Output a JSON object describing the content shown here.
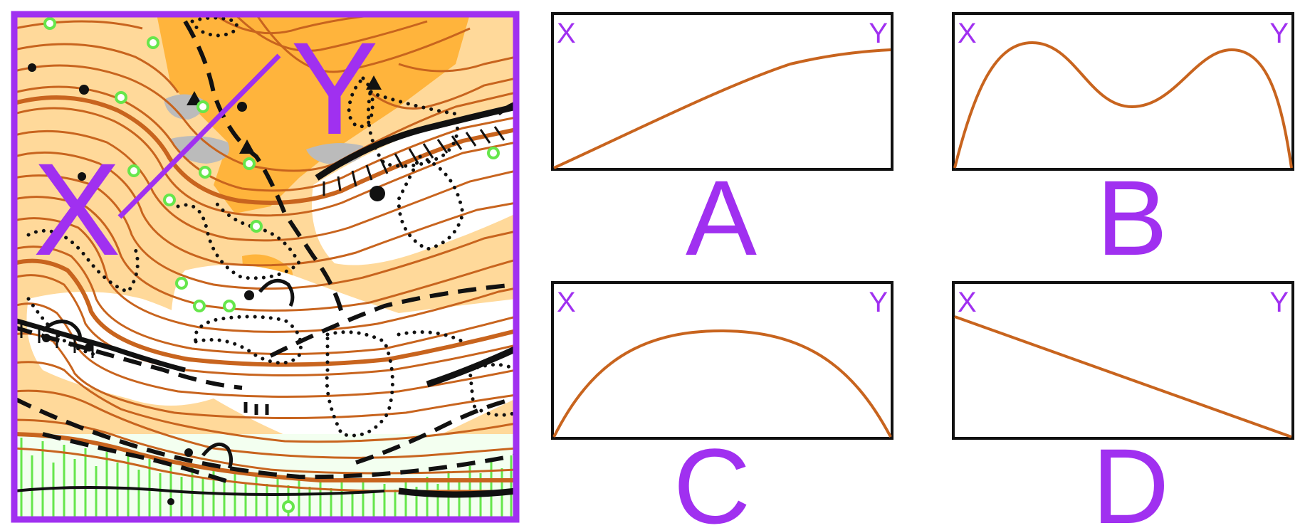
{
  "map": {
    "label_start": "X",
    "label_end": "Y",
    "marker_color": "#a030f0",
    "contour_color": "#c8641e",
    "terrain_colors": {
      "open_light": "#ffd99a",
      "open": "#ffb43c",
      "rough": "#bbbbbb",
      "marsh": "#66e64b"
    }
  },
  "profiles": [
    {
      "id": "A",
      "label": "A",
      "start": "X",
      "end": "Y",
      "shape": "steady-rise-then-flatten"
    },
    {
      "id": "B",
      "label": "B",
      "start": "X",
      "end": "Y",
      "shape": "two-peaks-with-dip"
    },
    {
      "id": "C",
      "label": "C",
      "start": "X",
      "end": "Y",
      "shape": "single-hump"
    },
    {
      "id": "D",
      "label": "D",
      "start": "X",
      "end": "Y",
      "shape": "steady-descent"
    }
  ],
  "colors": {
    "accent": "#a030f0",
    "profile_line": "#c8641e",
    "frame": "#111111"
  }
}
